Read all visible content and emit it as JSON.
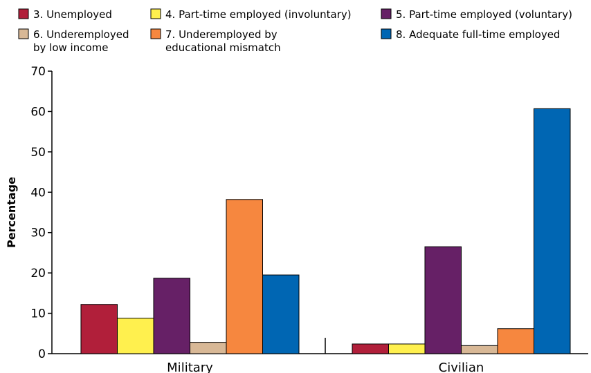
{
  "chart_data": {
    "type": "bar",
    "title": "",
    "xlabel": "",
    "ylabel": "Percentage",
    "ylim": [
      0,
      70
    ],
    "yticks": [
      0,
      10,
      20,
      30,
      40,
      50,
      60,
      70
    ],
    "grid": false,
    "legend_position": "top",
    "categories": [
      "Military",
      "Civilian"
    ],
    "series": [
      {
        "name": "3. Unemployed",
        "name_lines": [
          "3. Unemployed"
        ],
        "color": "#b11f3a",
        "values": [
          12.2,
          2.4
        ]
      },
      {
        "name": "4. Part-time employed (involuntary)",
        "name_lines": [
          "4. Part-time employed (involuntary)"
        ],
        "color": "#fff04e",
        "values": [
          8.8,
          2.4
        ]
      },
      {
        "name": "5. Part-time employed (voluntary)",
        "name_lines": [
          "5. Part-time employed (voluntary)"
        ],
        "color": "#662066",
        "values": [
          18.7,
          26.5
        ]
      },
      {
        "name": "6. Underemployed by low income",
        "name_lines": [
          "6. Underemployed",
          "by low income"
        ],
        "color": "#d8b896",
        "values": [
          2.8,
          2.0
        ]
      },
      {
        "name": "7. Underemployed by educational mismatch",
        "name_lines": [
          "7. Underemployed by",
          "educational mismatch"
        ],
        "color": "#f6873f",
        "values": [
          38.2,
          6.2
        ]
      },
      {
        "name": "8. Adequate full-time employed",
        "name_lines": [
          "8. Adequate full-time employed"
        ],
        "color": "#0066b3",
        "values": [
          19.5,
          60.7
        ]
      }
    ]
  }
}
